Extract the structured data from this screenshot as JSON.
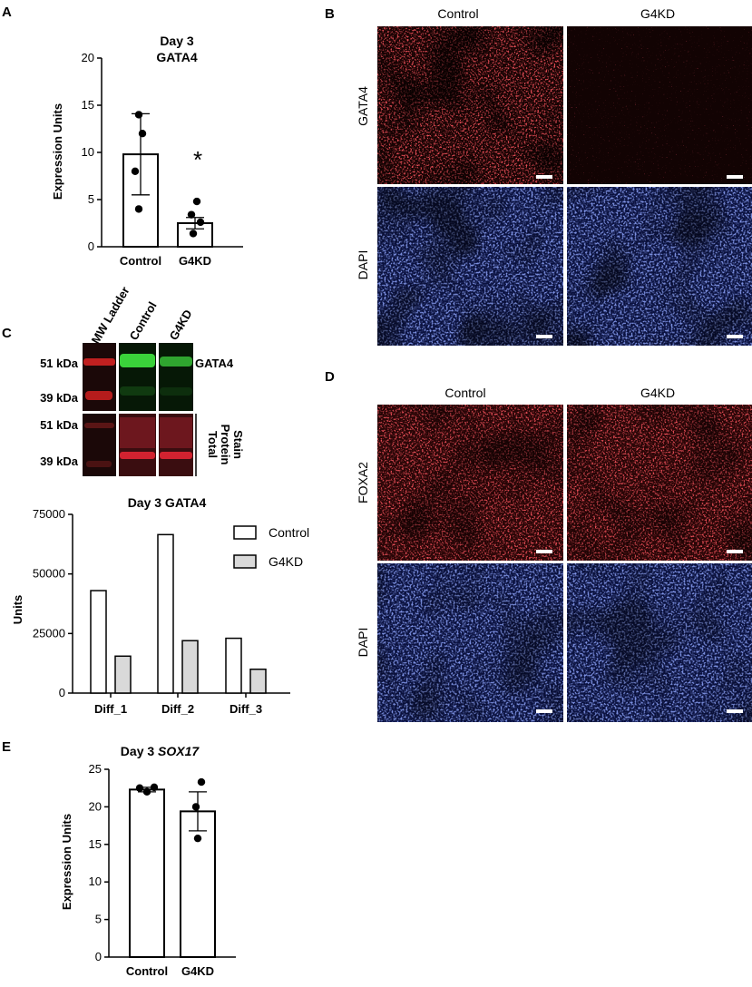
{
  "panels": {
    "a": "A",
    "b": "B",
    "c": "C",
    "d": "D",
    "e": "E"
  },
  "colors": {
    "gata4_red": "#c41a1f",
    "dapi_blue": "#2a3a9a",
    "blot_green": "#3ad23a",
    "bar_gray": "#d9d9d9",
    "axis": "#000000"
  },
  "panel_b": {
    "columns": [
      "Control",
      "G4KD"
    ],
    "rows": [
      "GATA4",
      "DAPI"
    ]
  },
  "panel_d": {
    "columns": [
      "Control",
      "G4KD"
    ],
    "rows": [
      "FOXA2",
      "DAPI"
    ]
  },
  "panel_c_blot": {
    "lanes": [
      "MW Ladder",
      "Control",
      "G4KD"
    ],
    "markers_top": [
      "51 kDa",
      "39 kDa"
    ],
    "markers_bottom": [
      "51 kDa",
      "39 kDa"
    ],
    "label_top": "GATA4",
    "label_bottom": [
      "Total",
      "Protein",
      "Stain"
    ]
  },
  "chart_data": [
    {
      "id": "panel_a",
      "type": "bar",
      "title": [
        "Day 3",
        "GATA4"
      ],
      "ylabel": "Expression Units",
      "categories": [
        "Control",
        "G4KD"
      ],
      "values": [
        9.8,
        2.5
      ],
      "error": [
        4.3,
        0.6
      ],
      "points": [
        [
          14.0,
          12.0,
          8.0,
          4.0
        ],
        [
          4.8,
          3.4,
          2.6,
          1.4
        ]
      ],
      "ylim": [
        0,
        20
      ],
      "yticks": [
        0,
        5,
        10,
        15,
        20
      ],
      "annotation": "*"
    },
    {
      "id": "panel_c_chart",
      "type": "bar",
      "title": "Day 3 GATA4",
      "ylabel": "Units",
      "categories": [
        "Diff_1",
        "Diff_2",
        "Diff_3"
      ],
      "series": [
        {
          "name": "Control",
          "values": [
            43000,
            66500,
            23000
          ]
        },
        {
          "name": "G4KD",
          "values": [
            15500,
            22000,
            10000
          ]
        }
      ],
      "ylim": [
        0,
        75000
      ],
      "yticks": [
        0,
        25000,
        50000,
        75000
      ],
      "legend": "top-right"
    },
    {
      "id": "panel_e",
      "type": "bar",
      "title": [
        "Day 3 ",
        "SOX17"
      ],
      "ylabel": "Expression Units",
      "categories": [
        "Control",
        "G4KD"
      ],
      "values": [
        22.3,
        19.4
      ],
      "error": [
        0.3,
        2.6
      ],
      "points": [
        [
          22.5,
          22.0,
          22.6
        ],
        [
          23.3,
          20.0,
          15.8
        ]
      ],
      "ylim": [
        0,
        25
      ],
      "yticks": [
        0,
        5,
        10,
        15,
        20,
        25
      ]
    }
  ]
}
